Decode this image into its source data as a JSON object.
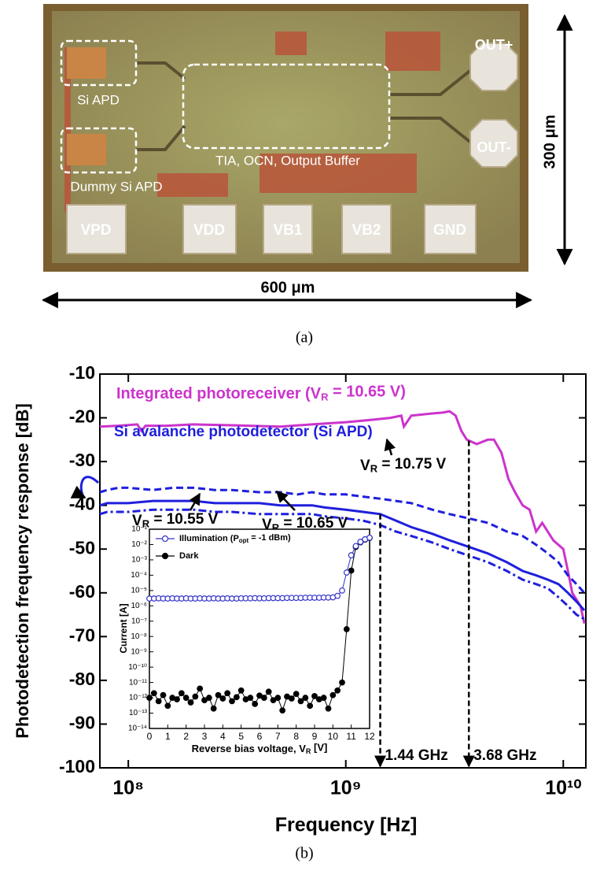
{
  "figure_a": {
    "blocks": [
      "Si APD",
      "Dummy Si APD",
      "TIA, OCN, Output Buffer"
    ],
    "outputs": [
      "OUT+",
      "OUT-"
    ],
    "pads": [
      "VPD",
      "VDD",
      "VB1",
      "VB2",
      "GND"
    ],
    "height": "300 μm",
    "width": "600 μm",
    "caption": "(a)"
  },
  "figure_b_caption": "(b)",
  "chart_data": [
    {
      "type": "line",
      "xlabel": "Frequency [Hz]",
      "ylabel": "Photodetection frequency response [dB]",
      "xscale": "log",
      "xlim": [
        74000000,
        12700000000
      ],
      "xticks": [
        {
          "value": 100000000,
          "label": "10⁸"
        },
        {
          "value": 1000000000,
          "label": "10⁹"
        },
        {
          "value": 10000000000,
          "label": "10¹⁰"
        }
      ],
      "ylim": [
        -100,
        -10
      ],
      "yticks": [
        -100,
        -90,
        -80,
        -70,
        -60,
        -50,
        -40,
        -30,
        -20,
        -10
      ],
      "annotations": [
        "Si avalanche photodetector (Si APD)"
      ],
      "markers": [
        {
          "x": 1440000000,
          "label": "1.44 GHz"
        },
        {
          "x": 3680000000,
          "label": "3.68 GHz"
        }
      ],
      "series": [
        {
          "name": [
            "Integrated photoreceiver (V",
            "R",
            " = 10.65 V)"
          ],
          "color": "#cc33cc",
          "dash": "solid",
          "x": [
            74000000,
            90000000,
            110000000,
            115000000,
            120000000,
            150000000,
            200000000,
            300000000,
            500000000,
            700000000,
            1000000000,
            1300000000,
            1600000000,
            1800000000,
            1850000000,
            2000000000,
            2500000000,
            2800000000,
            3000000000,
            3200000000,
            3400000000,
            3600000000,
            4000000000,
            4500000000,
            4800000000,
            5200000000,
            5600000000,
            6000000000,
            6500000000,
            7000000000,
            7500000000,
            8000000000,
            9000000000,
            10000000000,
            10500000000,
            11000000000,
            12000000000,
            12500000000
          ],
          "values": [
            -22,
            -21.8,
            -21.5,
            -23,
            -21.8,
            -21.8,
            -21.5,
            -21.7,
            -22,
            -21.5,
            -21,
            -20.5,
            -20,
            -19.5,
            -22,
            -19.5,
            -19,
            -18.8,
            -18.5,
            -19.5,
            -23,
            -25,
            -26,
            -25,
            -25,
            -28,
            -34,
            -37,
            -40,
            -41,
            -46,
            -44,
            -48,
            -50,
            -55,
            -60,
            -63,
            -67
          ]
        },
        {
          "name": [
            "V",
            "R",
            " = 10.75 V"
          ],
          "color": "#1f1fdd",
          "dash": "dashed",
          "x": [
            74000000,
            80000000,
            90000000,
            100000000,
            130000000,
            160000000,
            200000000,
            250000000,
            300000000,
            400000000,
            500000000,
            600000000,
            700000000,
            800000000,
            1000000000,
            1200000000,
            1440000000,
            1700000000,
            2000000000,
            2500000000,
            3000000000,
            3680000000,
            4500000000,
            5500000000,
            6500000000,
            7500000000,
            8500000000,
            9500000000,
            10500000000,
            11500000000,
            12500000000
          ],
          "values": [
            -37,
            -36.5,
            -36,
            -36,
            -36.5,
            -36,
            -36,
            -36.5,
            -36.5,
            -37,
            -37,
            -37.5,
            -37,
            -37.5,
            -37.5,
            -38,
            -38.5,
            -39,
            -39.5,
            -41,
            -42,
            -43,
            -44,
            -46,
            -47,
            -49,
            -51,
            -53,
            -56,
            -58,
            -60
          ]
        },
        {
          "name": [
            "V",
            "R",
            " = 10.65 V"
          ],
          "color": "#1f1fdd",
          "dash": "solid",
          "x": [
            74000000,
            80000000,
            90000000,
            100000000,
            130000000,
            160000000,
            200000000,
            250000000,
            300000000,
            400000000,
            500000000,
            600000000,
            700000000,
            800000000,
            1000000000,
            1200000000,
            1440000000,
            1700000000,
            2000000000,
            2500000000,
            3000000000,
            3680000000,
            4500000000,
            5500000000,
            6500000000,
            7500000000,
            8500000000,
            9500000000,
            10500000000,
            11500000000,
            12500000000
          ],
          "values": [
            -40,
            -39.5,
            -39.5,
            -39.5,
            -39,
            -39,
            -39,
            -39.5,
            -39.5,
            -39.5,
            -40,
            -40,
            -40,
            -40.5,
            -41,
            -41.5,
            -42,
            -43.5,
            -45,
            -46.5,
            -48,
            -49.5,
            -51,
            -53,
            -55,
            -56,
            -57,
            -58,
            -60,
            -62,
            -64
          ]
        },
        {
          "name": [
            "V",
            "R",
            " = 10.55 V"
          ],
          "color": "#1f1fdd",
          "dash": "dashdot",
          "x": [
            74000000,
            80000000,
            90000000,
            100000000,
            130000000,
            160000000,
            200000000,
            250000000,
            300000000,
            400000000,
            500000000,
            600000000,
            700000000,
            800000000,
            1000000000,
            1200000000,
            1440000000,
            1700000000,
            2000000000,
            2500000000,
            3000000000,
            3680000000,
            4500000000,
            5500000000,
            6500000000,
            7500000000,
            8500000000,
            9500000000,
            10500000000,
            11500000000,
            12500000000
          ],
          "values": [
            -42,
            -41.5,
            -41.5,
            -41.5,
            -41,
            -41,
            -41,
            -41.5,
            -41.5,
            -42,
            -42,
            -42,
            -42,
            -42.5,
            -43,
            -43.5,
            -44.5,
            -46,
            -47,
            -48.5,
            -50,
            -51.5,
            -53,
            -55,
            -57,
            -58,
            -59,
            -61,
            -63,
            -65,
            -66
          ]
        }
      ]
    },
    {
      "type": "scatter",
      "xlabel": [
        "Reverse bias voltage, V",
        "R",
        " [V]"
      ],
      "ylabel": "Current [A]",
      "yscale": "log",
      "legend": "upper left",
      "xlim": [
        0,
        12
      ],
      "xticks": [
        0,
        1,
        2,
        3,
        4,
        5,
        6,
        7,
        8,
        9,
        10,
        11,
        12
      ],
      "ylim": [
        1e-14,
        0.1
      ],
      "yticks": [
        {
          "value": 1e-14,
          "label": "10⁻¹⁴"
        },
        {
          "value": 1e-13,
          "label": "10⁻¹³"
        },
        {
          "value": 1e-12,
          "label": "10⁻¹²"
        },
        {
          "value": 1e-11,
          "label": "10⁻¹¹"
        },
        {
          "value": 1e-10,
          "label": "10⁻¹⁰"
        },
        {
          "value": 1e-09,
          "label": "10⁻⁹"
        },
        {
          "value": 1e-08,
          "label": "10⁻⁸"
        },
        {
          "value": 1e-07,
          "label": "10⁻⁷"
        },
        {
          "value": 1e-06,
          "label": "10⁻⁶"
        },
        {
          "value": 1e-05,
          "label": "10⁻⁵"
        },
        {
          "value": 0.0001,
          "label": "10⁻⁴"
        },
        {
          "value": 0.001,
          "label": "10⁻³"
        },
        {
          "value": 0.01,
          "label": "10⁻²"
        },
        {
          "value": 0.1,
          "label": "10⁻¹"
        }
      ],
      "x": [
        0,
        0.25,
        0.5,
        0.75,
        1,
        1.25,
        1.5,
        1.75,
        2,
        2.25,
        2.5,
        2.75,
        3,
        3.25,
        3.5,
        3.75,
        4,
        4.25,
        4.5,
        4.75,
        5,
        5.25,
        5.5,
        5.75,
        6,
        6.25,
        6.5,
        6.75,
        7,
        7.25,
        7.5,
        7.75,
        8,
        8.25,
        8.5,
        8.75,
        9,
        9.25,
        9.5,
        9.75,
        10,
        10.25,
        10.5,
        10.75,
        11,
        11.25,
        11.5,
        11.75,
        12
      ],
      "series": [
        {
          "name": [
            "Illumination (P",
            "opt",
            " = -1 dBm)"
          ],
          "color": "#3333cc",
          "marker": "open",
          "values": [
            3e-06,
            3e-06,
            3.1e-06,
            3e-06,
            3e-06,
            3.1e-06,
            3e-06,
            3e-06,
            3.1e-06,
            3e-06,
            3e-06,
            3.1e-06,
            3e-06,
            3e-06,
            3.1e-06,
            3e-06,
            3e-06,
            3.1e-06,
            3e-06,
            3e-06,
            3.1e-06,
            3.1e-06,
            3.1e-06,
            3.2e-06,
            3.1e-06,
            3.1e-06,
            3.2e-06,
            3.2e-06,
            3.2e-06,
            3.2e-06,
            3.3e-06,
            3.3e-06,
            3.3e-06,
            3.3e-06,
            3.4e-06,
            3.4e-06,
            3.4e-06,
            3.4e-06,
            3.5e-06,
            3.5e-06,
            3.6e-06,
            4.5e-06,
            1e-05,
            0.00015,
            0.002,
            0.008,
            0.015,
            0.022,
            0.028
          ]
        },
        {
          "name": [
            "Dark"
          ],
          "color": "#000000",
          "marker": "filled",
          "values": [
            1e-12,
            2e-12,
            6e-13,
            1.5e-12,
            3e-13,
            1e-12,
            8e-13,
            2e-12,
            1e-12,
            5e-13,
            1.2e-12,
            4e-12,
            7e-13,
            1e-12,
            2e-13,
            1.5e-12,
            9e-13,
            2e-12,
            6e-13,
            1.1e-12,
            3e-12,
            8e-13,
            1e-12,
            4e-13,
            1.4e-12,
            1e-12,
            2.5e-12,
            7e-13,
            1e-12,
            1.5e-13,
            1.2e-12,
            9e-13,
            1.8e-12,
            6e-13,
            1e-12,
            3e-13,
            1.3e-12,
            8e-13,
            1e-12,
            2e-13,
            1.5e-12,
            3e-12,
            1e-11,
            3e-08,
            0.0002,
            0.007,
            0.014,
            0.021,
            0.027
          ]
        }
      ]
    }
  ]
}
